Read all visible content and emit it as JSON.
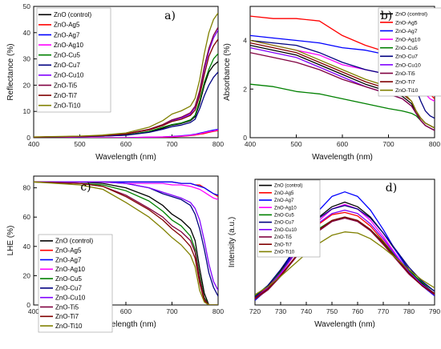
{
  "chart_data": [
    {
      "type": "line",
      "panel_label": "a)",
      "xlabel": "Wavelength (nm)",
      "ylabel": "Reflectance (%)",
      "xlim": [
        400,
        800
      ],
      "ylim": [
        0,
        50
      ],
      "xticks": [
        400,
        500,
        600,
        700,
        800
      ],
      "yticks": [
        0,
        10,
        20,
        30,
        40,
        50
      ],
      "legend_position": "top-left",
      "x": [
        400,
        500,
        550,
        600,
        650,
        680,
        700,
        720,
        740,
        750,
        760,
        770,
        780,
        790,
        800
      ],
      "series": [
        {
          "name": "ZnO (control)",
          "color": "#000000",
          "values": [
            0.2,
            0.4,
            0.6,
            1.0,
            2.2,
            3.6,
            4.8,
            5.4,
            6.5,
            8.0,
            13.0,
            20.0,
            25.0,
            27.5,
            29.0
          ]
        },
        {
          "name": "ZnO-Ag5",
          "color": "#ff0000",
          "values": [
            0,
            0,
            0,
            0,
            0.1,
            0.2,
            0.3,
            0.5,
            0.8,
            1.0,
            1.3,
            1.6,
            2.0,
            2.4,
            2.7
          ]
        },
        {
          "name": "ZnO-Ag7",
          "color": "#0000ff",
          "values": [
            0,
            0,
            0,
            0,
            0.2,
            0.3,
            0.5,
            0.7,
            1.0,
            1.3,
            1.7,
            2.1,
            2.5,
            2.9,
            3.2
          ]
        },
        {
          "name": "ZnO-Ag10",
          "color": "#ff00ff",
          "values": [
            0,
            0,
            0,
            0,
            0.2,
            0.3,
            0.4,
            0.6,
            0.9,
            1.2,
            1.5,
            1.9,
            2.3,
            2.6,
            3.0
          ]
        },
        {
          "name": "ZnO-Cu5",
          "color": "#008000",
          "values": [
            0.2,
            0.4,
            0.6,
            1.0,
            2.4,
            4.0,
            5.0,
            5.6,
            6.8,
            8.5,
            14.0,
            21.0,
            26.0,
            30.0,
            32.0
          ]
        },
        {
          "name": "ZnO-Cu7",
          "color": "#000080",
          "values": [
            0.2,
            0.4,
            0.6,
            0.9,
            2.0,
            3.2,
            4.2,
            4.8,
            5.8,
            7.0,
            11.0,
            16.0,
            20.0,
            23.0,
            25.0
          ]
        },
        {
          "name": "ZnO-Cu10",
          "color": "#8000ff",
          "values": [
            0.2,
            0.5,
            0.8,
            1.4,
            3.0,
            4.8,
            6.5,
            7.5,
            9.0,
            11.5,
            17.0,
            26.0,
            33.0,
            38.0,
            41.0
          ]
        },
        {
          "name": "ZnO-Ti5",
          "color": "#800040",
          "values": [
            0.2,
            0.5,
            0.8,
            1.5,
            3.2,
            5.0,
            6.8,
            7.8,
            9.5,
            12.0,
            18.0,
            27.0,
            34.0,
            39.0,
            42.0
          ]
        },
        {
          "name": "ZnO-Ti7",
          "color": "#800000",
          "values": [
            0.2,
            0.5,
            0.8,
            1.4,
            3.0,
            4.6,
            6.2,
            7.0,
            8.5,
            10.5,
            16.0,
            24.0,
            31.0,
            35.0,
            37.5
          ]
        },
        {
          "name": "ZnO-Ti10",
          "color": "#808000",
          "values": [
            0.3,
            0.6,
            1.0,
            1.8,
            4.0,
            6.5,
            9.0,
            10.2,
            12.0,
            15.0,
            22.0,
            32.0,
            40.0,
            45.0,
            47.5
          ]
        }
      ]
    },
    {
      "type": "line",
      "panel_label": "b)",
      "xlabel": "Wavelength (nm)",
      "ylabel": "Absorbance (%)",
      "xlim": [
        400,
        800
      ],
      "ylim": [
        0,
        5.4
      ],
      "xticks": [
        400,
        500,
        600,
        700,
        800
      ],
      "yticks": [
        0,
        2,
        4
      ],
      "legend_position": "top-right",
      "x": [
        400,
        450,
        500,
        550,
        600,
        650,
        700,
        730,
        750,
        760,
        770,
        780,
        790,
        800
      ],
      "series": [
        {
          "name": "ZnO (control)",
          "color": "#000000",
          "values": [
            3.8,
            3.6,
            3.4,
            3.0,
            2.6,
            2.2,
            1.9,
            1.7,
            1.4,
            1.0,
            0.8,
            0.6,
            0.5,
            0.4
          ]
        },
        {
          "name": "ZnO-Ag5",
          "color": "#ff0000",
          "values": [
            5.0,
            4.9,
            4.9,
            4.8,
            4.2,
            3.8,
            3.5,
            3.3,
            3.1,
            2.8,
            2.4,
            2.0,
            1.8,
            1.6
          ]
        },
        {
          "name": "ZnO-Ag7",
          "color": "#0000ff",
          "values": [
            4.2,
            4.1,
            4.0,
            3.9,
            3.7,
            3.6,
            3.4,
            3.3,
            3.2,
            3.0,
            2.7,
            2.3,
            2.1,
            2.0
          ]
        },
        {
          "name": "ZnO-Ag10",
          "color": "#ff00ff",
          "values": [
            4.0,
            3.8,
            3.6,
            3.4,
            3.0,
            2.8,
            2.6,
            2.5,
            2.4,
            2.2,
            2.0,
            1.8,
            1.6,
            1.5
          ]
        },
        {
          "name": "ZnO-Cu5",
          "color": "#008000",
          "values": [
            2.2,
            2.1,
            1.9,
            1.8,
            1.6,
            1.4,
            1.2,
            1.1,
            1.0,
            0.9,
            0.7,
            0.5,
            0.4,
            0.3
          ]
        },
        {
          "name": "ZnO-Cu7",
          "color": "#000080",
          "values": [
            4.0,
            3.9,
            3.8,
            3.5,
            3.1,
            2.8,
            2.6,
            2.5,
            2.3,
            2.0,
            1.5,
            1.1,
            0.9,
            0.8
          ]
        },
        {
          "name": "ZnO-Cu10",
          "color": "#8000ff",
          "values": [
            3.7,
            3.5,
            3.3,
            2.9,
            2.5,
            2.1,
            1.8,
            1.6,
            1.3,
            1.0,
            0.7,
            0.5,
            0.4,
            0.3
          ]
        },
        {
          "name": "ZnO-Ti5",
          "color": "#800040",
          "values": [
            3.5,
            3.3,
            3.1,
            2.8,
            2.4,
            2.1,
            1.8,
            1.6,
            1.3,
            1.0,
            0.7,
            0.5,
            0.4,
            0.3
          ]
        },
        {
          "name": "ZnO-Ti7",
          "color": "#800000",
          "values": [
            3.9,
            3.7,
            3.5,
            3.1,
            2.7,
            2.3,
            2.0,
            1.8,
            1.5,
            1.1,
            0.8,
            0.6,
            0.5,
            0.4
          ]
        },
        {
          "name": "ZnO-Ti10",
          "color": "#808000",
          "values": [
            4.0,
            3.8,
            3.6,
            3.2,
            2.8,
            2.4,
            2.1,
            1.9,
            1.5,
            1.1,
            0.8,
            0.6,
            0.5,
            0.4
          ]
        }
      ]
    },
    {
      "type": "line",
      "panel_label": "c)",
      "xlabel": "Wavelength (nm)",
      "ylabel": "LHE (%)",
      "xlim": [
        400,
        800
      ],
      "ylim": [
        0,
        88
      ],
      "xticks": [
        400,
        500,
        600,
        700,
        800
      ],
      "yticks": [
        0,
        20,
        40,
        60,
        80
      ],
      "legend_position": "bottom-left",
      "x": [
        400,
        500,
        550,
        600,
        650,
        680,
        700,
        720,
        740,
        750,
        760,
        770,
        780,
        790,
        800
      ],
      "series": [
        {
          "name": "ZnO (control)",
          "color": "#000000",
          "values": [
            84,
            84,
            83,
            80,
            74,
            68,
            62,
            58,
            52,
            44,
            25,
            8,
            0,
            0,
            0
          ]
        },
        {
          "name": "ZnO-Ag5",
          "color": "#ff0000",
          "values": [
            84,
            84,
            84,
            84,
            84,
            84,
            84,
            83,
            83,
            82,
            82,
            80,
            78,
            76,
            74
          ]
        },
        {
          "name": "ZnO-Ag7",
          "color": "#0000ff",
          "values": [
            84,
            84,
            84,
            84,
            84,
            84,
            84,
            83,
            83,
            82,
            81,
            80,
            78,
            76,
            75
          ]
        },
        {
          "name": "ZnO-Ag10",
          "color": "#ff00ff",
          "values": [
            84,
            84,
            84,
            83,
            83,
            83,
            82,
            82,
            81,
            80,
            79,
            77,
            75,
            73,
            72
          ]
        },
        {
          "name": "ZnO-Cu5",
          "color": "#008000",
          "values": [
            84,
            83,
            82,
            78,
            71,
            64,
            58,
            54,
            47,
            38,
            20,
            5,
            0,
            0,
            0
          ]
        },
        {
          "name": "ZnO-Cu7",
          "color": "#000080",
          "values": [
            84,
            84,
            84,
            83,
            80,
            76,
            74,
            72,
            68,
            62,
            52,
            38,
            22,
            12,
            6
          ]
        },
        {
          "name": "ZnO-Cu10",
          "color": "#8000ff",
          "values": [
            84,
            84,
            84,
            83,
            80,
            77,
            75,
            73,
            70,
            66,
            58,
            44,
            28,
            16,
            10
          ]
        },
        {
          "name": "ZnO-Ti5",
          "color": "#800040",
          "values": [
            84,
            83,
            81,
            75,
            66,
            60,
            54,
            50,
            44,
            36,
            18,
            4,
            0,
            0,
            0
          ]
        },
        {
          "name": "ZnO-Ti7",
          "color": "#800000",
          "values": [
            84,
            83,
            81,
            74,
            65,
            58,
            52,
            47,
            40,
            32,
            15,
            3,
            0,
            0,
            0
          ]
        },
        {
          "name": "ZnO-Ti10",
          "color": "#808000",
          "values": [
            84,
            82,
            79,
            70,
            60,
            52,
            46,
            41,
            34,
            26,
            10,
            2,
            0,
            0,
            0
          ]
        }
      ]
    },
    {
      "type": "line",
      "panel_label": "d)",
      "xlabel": "Wavelength (nm)",
      "ylabel": "Intensity (a.u.)",
      "xlim": [
        720,
        790
      ],
      "ylim": [
        0,
        1.1
      ],
      "xticks": [
        720,
        730,
        740,
        750,
        760,
        770,
        780,
        790
      ],
      "yticks": [],
      "legend_position": "top-left",
      "x": [
        720,
        725,
        730,
        735,
        740,
        745,
        750,
        755,
        760,
        765,
        770,
        775,
        780,
        785,
        790
      ],
      "series": [
        {
          "name": "ZnO (control)",
          "color": "#000000",
          "values": [
            0.06,
            0.16,
            0.3,
            0.46,
            0.63,
            0.77,
            0.86,
            0.9,
            0.86,
            0.77,
            0.63,
            0.47,
            0.31,
            0.19,
            0.1
          ]
        },
        {
          "name": "ZnO-Ag5",
          "color": "#ff0000",
          "values": [
            0.07,
            0.16,
            0.29,
            0.44,
            0.59,
            0.71,
            0.79,
            0.81,
            0.78,
            0.69,
            0.56,
            0.42,
            0.28,
            0.17,
            0.09
          ]
        },
        {
          "name": "ZnO-Ag7",
          "color": "#0000ff",
          "values": [
            0.04,
            0.14,
            0.28,
            0.46,
            0.66,
            0.83,
            0.95,
            0.99,
            0.95,
            0.83,
            0.66,
            0.47,
            0.3,
            0.17,
            0.08
          ]
        },
        {
          "name": "ZnO-Ag10",
          "color": "#ff00ff",
          "values": [
            0.05,
            0.14,
            0.27,
            0.43,
            0.6,
            0.74,
            0.84,
            0.88,
            0.84,
            0.74,
            0.6,
            0.44,
            0.29,
            0.17,
            0.09
          ]
        },
        {
          "name": "ZnO-Cu5",
          "color": "#008000",
          "values": [
            0.08,
            0.17,
            0.29,
            0.43,
            0.56,
            0.67,
            0.74,
            0.77,
            0.74,
            0.66,
            0.55,
            0.42,
            0.3,
            0.2,
            0.12
          ]
        },
        {
          "name": "ZnO-Cu7",
          "color": "#000080",
          "values": [
            0.07,
            0.17,
            0.31,
            0.47,
            0.63,
            0.76,
            0.84,
            0.87,
            0.84,
            0.76,
            0.63,
            0.48,
            0.33,
            0.21,
            0.12
          ]
        },
        {
          "name": "ZnO-Cu10",
          "color": "#8000ff",
          "values": [
            0.06,
            0.15,
            0.28,
            0.43,
            0.59,
            0.72,
            0.8,
            0.83,
            0.8,
            0.71,
            0.58,
            0.43,
            0.29,
            0.18,
            0.1
          ]
        },
        {
          "name": "ZnO-Ti5",
          "color": "#800040",
          "values": [
            0.05,
            0.13,
            0.25,
            0.39,
            0.53,
            0.65,
            0.73,
            0.76,
            0.73,
            0.65,
            0.53,
            0.4,
            0.27,
            0.17,
            0.09
          ]
        },
        {
          "name": "ZnO-Ti7",
          "color": "#800000",
          "values": [
            0.06,
            0.14,
            0.26,
            0.4,
            0.54,
            0.66,
            0.74,
            0.77,
            0.74,
            0.66,
            0.54,
            0.41,
            0.28,
            0.17,
            0.1
          ]
        },
        {
          "name": "ZnO-Ti10",
          "color": "#808000",
          "values": [
            0.09,
            0.16,
            0.25,
            0.35,
            0.45,
            0.54,
            0.61,
            0.64,
            0.63,
            0.58,
            0.5,
            0.41,
            0.31,
            0.22,
            0.15
          ]
        }
      ]
    }
  ]
}
